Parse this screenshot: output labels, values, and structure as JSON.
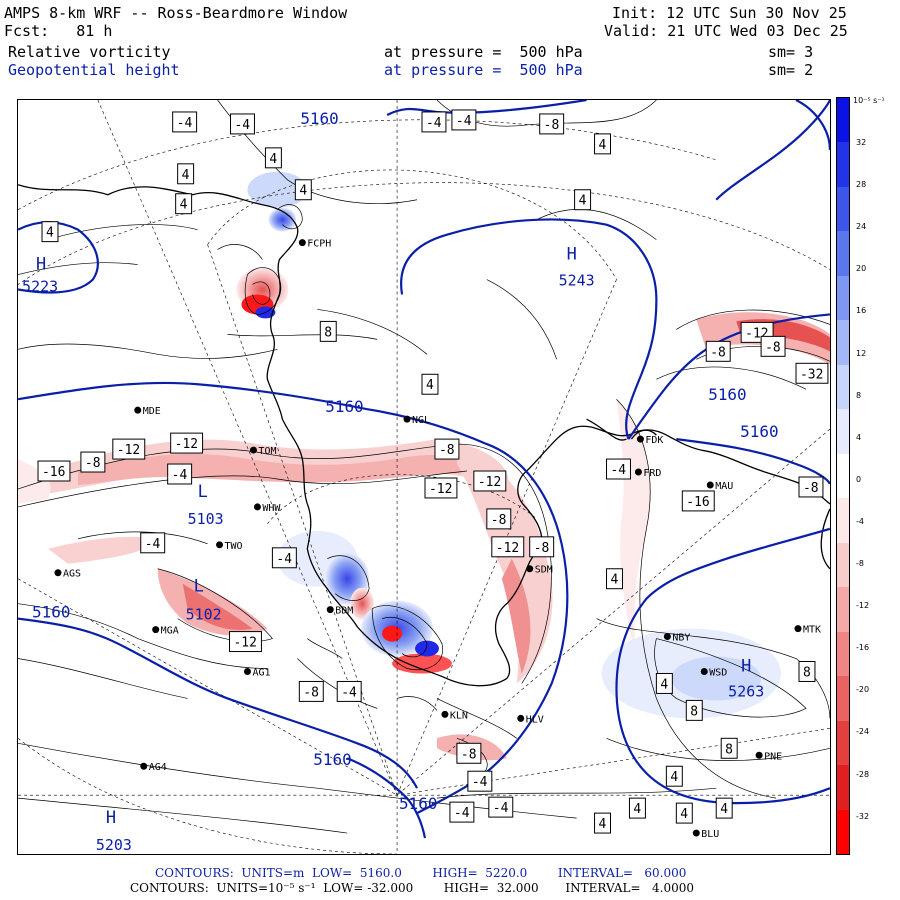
{
  "header": {
    "title": "AMPS 8-km WRF -- Ross-Beardmore Window",
    "forecast": "Fcst:   81 h",
    "init": "Init: 12 UTC Sun 30 Nov 25",
    "valid": "Valid: 21 UTC Wed 03 Dec 25",
    "field1_name": "Relative vorticity",
    "field1_level": "at pressure =  500 hPa",
    "field1_sm": "sm= 3",
    "field2_name": "Geopotential height",
    "field2_level": "at pressure =  500 hPa",
    "field2_sm": "sm= 2"
  },
  "colorbar": {
    "unit": "10⁻⁵ s⁻¹",
    "ticks": [
      "32",
      "28",
      "24",
      "20",
      "16",
      "12",
      "8",
      "4",
      "0",
      "-4",
      "-8",
      "-12",
      "-16",
      "-20",
      "-24",
      "-28",
      "-32"
    ],
    "colors": [
      "#0a12e6",
      "#2233e8",
      "#3c55ea",
      "#5a77ee",
      "#7d97f2",
      "#a3b6f6",
      "#c8d5fa",
      "#e6ecfd",
      "#ffffff",
      "#fde9e9",
      "#f9cccc",
      "#f4a8a8",
      "#ef8585",
      "#ea6262",
      "#e43f3f",
      "#e02020",
      "#ff0000"
    ]
  },
  "map": {
    "stations": [
      {
        "id": "FCPH",
        "label": "FCPH"
      },
      {
        "id": "MDE",
        "label": "MDE"
      },
      {
        "id": "TOM",
        "label": "TOM"
      },
      {
        "id": "NGL",
        "label": "NGL"
      },
      {
        "id": "FDK",
        "label": "FDK"
      },
      {
        "id": "FRD",
        "label": "FRD"
      },
      {
        "id": "MAU",
        "label": "MAU"
      },
      {
        "id": "WHW",
        "label": "WHW"
      },
      {
        "id": "TWO",
        "label": "TWO"
      },
      {
        "id": "AGS",
        "label": "AGS"
      },
      {
        "id": "SDM",
        "label": "SDM"
      },
      {
        "id": "BDM",
        "label": "BDM"
      },
      {
        "id": "MGA",
        "label": "MGA"
      },
      {
        "id": "NBY",
        "label": "NBY"
      },
      {
        "id": "MTK",
        "label": "MTK"
      },
      {
        "id": "AG1",
        "label": "AG1"
      },
      {
        "id": "WSD",
        "label": "WSD"
      },
      {
        "id": "KLN",
        "label": "KLN"
      },
      {
        "id": "HLV",
        "label": "HLV"
      },
      {
        "id": "AG4",
        "label": "AG4"
      },
      {
        "id": "PNE",
        "label": "PNE"
      },
      {
        "id": "BLU",
        "label": "BLU"
      }
    ],
    "highs": [
      {
        "label": "H",
        "value": "5223"
      },
      {
        "label": "H",
        "value": "5243"
      },
      {
        "label": "H",
        "value": "5203"
      },
      {
        "label": "H",
        "value": "5263"
      }
    ],
    "lows": [
      {
        "label": "L",
        "value": "5103"
      },
      {
        "label": "L",
        "value": "5102"
      }
    ],
    "height_labels": [
      "5160",
      "5160",
      "5160",
      "5160",
      "5160",
      "5160",
      "5160"
    ],
    "vort_labels": [
      "-4",
      "-4",
      "-4",
      "-4",
      "-8",
      "4",
      "4",
      "4",
      "4",
      "4",
      "-8",
      "-12",
      "-16",
      "-12",
      "-8",
      "-12",
      "-12",
      "-8",
      "-12",
      "-8",
      "-12",
      "-8",
      "-8",
      "-32",
      "-16",
      "-8",
      "-4",
      "-4",
      "-4",
      "-8",
      "-12",
      "-4",
      "-4",
      "8",
      "8",
      "8",
      "4",
      "4",
      "4",
      "-4",
      "-8",
      "-4",
      "-4",
      "4",
      "4",
      "4",
      "8",
      "4",
      "4",
      "4",
      "4"
    ]
  },
  "footer": {
    "line1": "CONTOURS:  UNITS=m  LOW=  5160.0        HIGH=  5220.0        INTERVAL=   60.000",
    "line2": "CONTOURS:  UNITS=10⁻⁵ s⁻¹  LOW= -32.000        HIGH=  32.000       INTERVAL=   4.0000"
  }
}
